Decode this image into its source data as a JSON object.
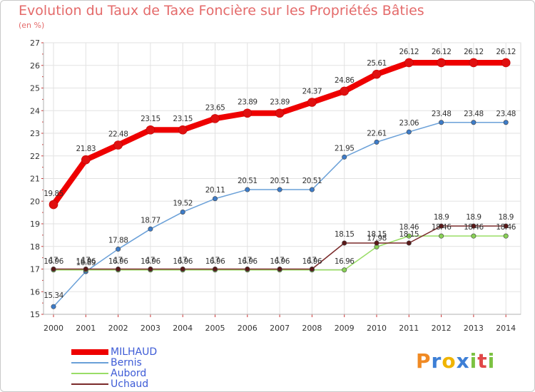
{
  "title": "Evolution du Taux de Taxe Foncière sur les Propriétés Bâties",
  "subtitle": "(en %)",
  "logo": {
    "text": "Proxiti",
    "letters": [
      "P",
      "r",
      "o",
      "x",
      "i",
      "t",
      "i"
    ],
    "colors": [
      "#f08a24",
      "#3d7fd6",
      "#f0b400",
      "#3d7fd6",
      "#7cc242",
      "#e04848",
      "#7cc242"
    ]
  },
  "chart_data": {
    "type": "line",
    "title": "Evolution du Taux de Taxe Foncière sur les Propriétés Bâties",
    "ylabel": "(en %)",
    "categories": [
      "2000",
      "2001",
      "2002",
      "2003",
      "2004",
      "2005",
      "2006",
      "2007",
      "2008",
      "2009",
      "2010",
      "2011",
      "2012",
      "2013",
      "2014"
    ],
    "ylim": [
      15,
      27
    ],
    "yticks": [
      "15",
      "16",
      "17",
      "18",
      "19",
      "20",
      "21",
      "22",
      "23",
      "24",
      "25",
      "26",
      "27"
    ],
    "grid": true,
    "legend": "bottom-left",
    "series": [
      {
        "name": "MILHAUD",
        "color": "#ee0000",
        "marker": "#e01010",
        "width": 8,
        "values": [
          19.85,
          21.83,
          22.48,
          23.15,
          23.15,
          23.65,
          23.89,
          23.89,
          24.37,
          24.86,
          25.61,
          26.12,
          26.12,
          26.12,
          26.12
        ],
        "labels": [
          "19.85",
          "21.83",
          "22.48",
          "23.15",
          "23.15",
          "23.65",
          "23.89",
          "23.89",
          "24.37",
          "24.86",
          "25.61",
          "26.12",
          "26.12",
          "26.12",
          "26.12"
        ]
      },
      {
        "name": "Bernis",
        "color": "#6aa0d8",
        "marker": "#3d7cc9",
        "width": 1.5,
        "values": [
          15.34,
          16.89,
          17.88,
          18.77,
          19.52,
          20.11,
          20.51,
          20.51,
          20.51,
          21.95,
          22.61,
          23.06,
          23.48,
          23.48,
          23.48
        ],
        "labels": [
          "15.34",
          "16.89",
          "17.88",
          "18.77",
          "19.52",
          "20.11",
          "20.51",
          "20.51",
          "20.51",
          "21.95",
          "22.61",
          "23.06",
          "23.48",
          "23.48",
          "23.48"
        ]
      },
      {
        "name": "Aubord",
        "color": "#99dd66",
        "marker": "#88d055",
        "width": 1.5,
        "values": [
          16.96,
          16.96,
          16.96,
          16.96,
          16.96,
          16.96,
          16.96,
          16.96,
          16.96,
          16.96,
          17.98,
          18.46,
          18.46,
          18.46,
          18.46
        ],
        "labels": [
          "16.96",
          "16.96",
          "16.96",
          "16.96",
          "16.96",
          "16.96",
          "16.96",
          "16.96",
          "16.96",
          "16.96",
          "17.98",
          "18.46",
          "18.46",
          "18.46",
          "18.46"
        ]
      },
      {
        "name": "Uchaud",
        "color": "#7a2a2a",
        "marker": "#5a1818",
        "width": 1.5,
        "values": [
          17,
          17,
          17,
          17,
          17,
          17,
          17,
          17,
          17,
          18.15,
          18.15,
          18.15,
          18.9,
          18.9,
          18.9
        ],
        "labels": [
          "17",
          "17",
          "17",
          "17",
          "17",
          "17",
          "17",
          "17",
          "17",
          "18.15",
          "18.15",
          "18.15",
          "18.9",
          "18.9",
          "18.9"
        ]
      }
    ]
  }
}
